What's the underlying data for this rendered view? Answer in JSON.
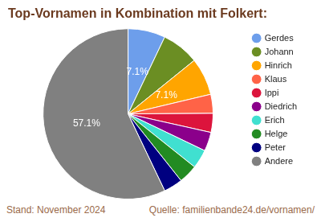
{
  "chart_data": {
    "type": "pie",
    "title": "Top-Vornamen in Kombination mit Folkert:",
    "categories": [
      "Gerdes",
      "Johann",
      "Hinrich",
      "Klaus",
      "Ippi",
      "Diedrich",
      "Erich",
      "Helge",
      "Peter",
      "Andere"
    ],
    "values": [
      7.1,
      7.1,
      7.1,
      3.6,
      3.6,
      3.6,
      3.6,
      3.6,
      3.6,
      57.1
    ],
    "value_labels": [
      "7.1%",
      null,
      "7.1%",
      null,
      null,
      null,
      null,
      null,
      null,
      "57.1%"
    ],
    "colors": [
      "#6d9eeb",
      "#6b8e23",
      "#ffa500",
      "#ff6347",
      "#dc143c",
      "#8b008b",
      "#40e0d0",
      "#228b22",
      "#000080",
      "#808080"
    ],
    "data_labels": true,
    "legend": "right",
    "annotations": [
      "Stand: November 2024",
      "Quelle: familienbande24.de/vornamen/"
    ]
  }
}
